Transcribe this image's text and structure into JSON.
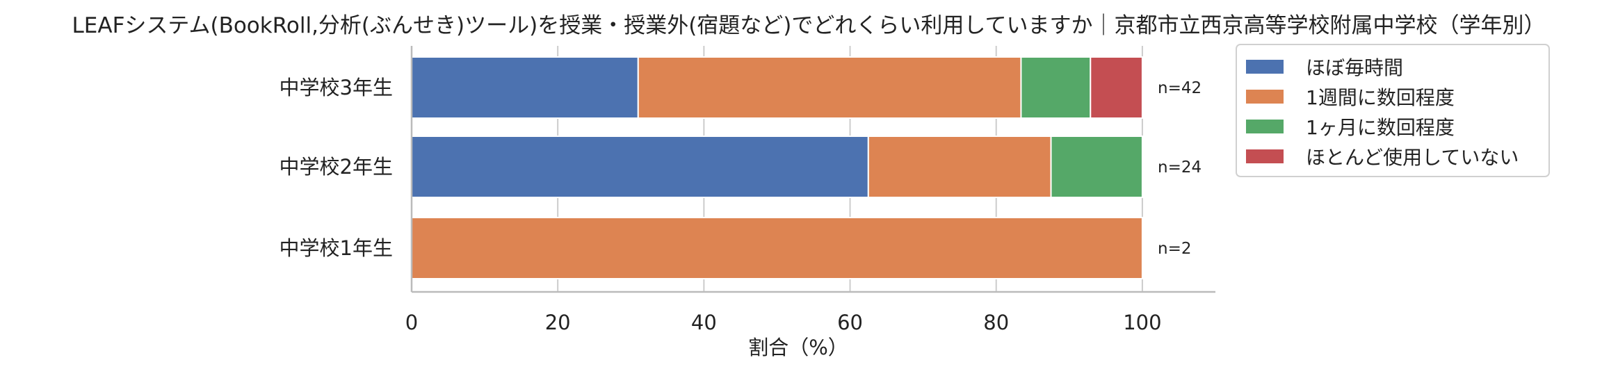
{
  "chart_data": {
    "type": "bar",
    "orientation": "horizontal",
    "stacked": true,
    "title": "LEAFシステム(BookRoll,分析(ぶんせき)ツール)を授業・授業外(宿題など)でどれくらい利用していますか｜京都市立西京高等学校附属中学校（学年別）",
    "xlabel": "割合（%）",
    "ylabel": "",
    "xlim": [
      0,
      110
    ],
    "xticks": [
      0,
      20,
      40,
      60,
      80,
      100
    ],
    "grid": "vertical",
    "legend_position": "right-top",
    "categories": [
      "中学校3年生",
      "中学校2年生",
      "中学校1年生"
    ],
    "n_labels": [
      "n=42",
      "n=24",
      "n=2"
    ],
    "series": [
      {
        "name": "ほぼ毎時間",
        "color": "#4c72b0",
        "values": [
          31.0,
          62.5,
          0
        ]
      },
      {
        "name": "1週間に数回程度",
        "color": "#dd8452",
        "values": [
          52.4,
          25.0,
          100
        ]
      },
      {
        "name": "1ヶ月に数回程度",
        "color": "#55a868",
        "values": [
          9.5,
          12.5,
          0
        ]
      },
      {
        "name": "ほとんど使用していない",
        "color": "#c44e52",
        "values": [
          7.1,
          0,
          0
        ]
      }
    ]
  }
}
